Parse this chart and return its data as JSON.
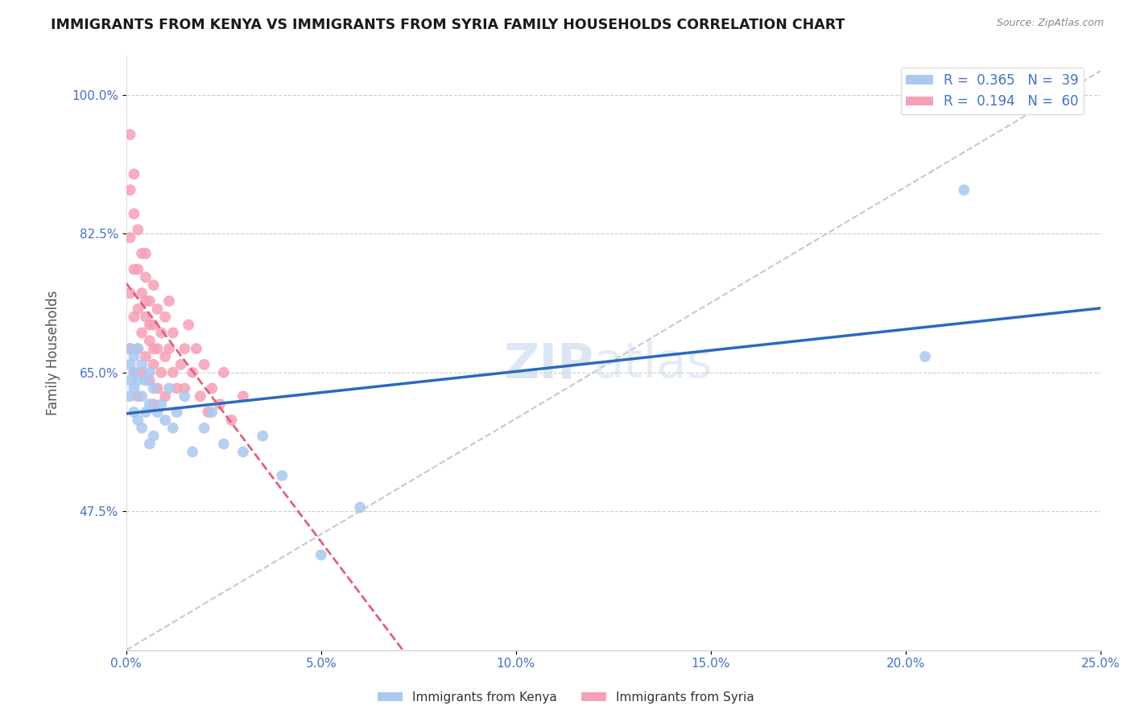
{
  "title": "IMMIGRANTS FROM KENYA VS IMMIGRANTS FROM SYRIA FAMILY HOUSEHOLDS CORRELATION CHART",
  "source": "Source: ZipAtlas.com",
  "xlabel": "",
  "ylabel": "Family Households",
  "xlim": [
    0.0,
    0.25
  ],
  "ylim": [
    0.3,
    1.05
  ],
  "xticks": [
    0.0,
    0.05,
    0.1,
    0.15,
    0.2,
    0.25
  ],
  "xtick_labels": [
    "0.0%",
    "5.0%",
    "10.0%",
    "15.0%",
    "20.0%",
    "25.0%"
  ],
  "yticks": [
    0.475,
    0.65,
    0.825,
    1.0
  ],
  "ytick_labels": [
    "47.5%",
    "65.0%",
    "82.5%",
    "100.0%"
  ],
  "kenya_R": 0.365,
  "kenya_N": 39,
  "syria_R": 0.194,
  "syria_N": 60,
  "kenya_color": "#aac8f0",
  "syria_color": "#f5a0b5",
  "kenya_line_color": "#2a6abf",
  "syria_line_color": "#e06080",
  "watermark_part1": "ZIP",
  "watermark_part2": "atlas",
  "legend_label_kenya": "Immigrants from Kenya",
  "legend_label_syria": "Immigrants from Syria",
  "kenya_x": [
    0.001,
    0.001,
    0.001,
    0.001,
    0.002,
    0.002,
    0.002,
    0.002,
    0.003,
    0.003,
    0.003,
    0.004,
    0.004,
    0.004,
    0.005,
    0.005,
    0.006,
    0.006,
    0.006,
    0.007,
    0.007,
    0.008,
    0.009,
    0.01,
    0.011,
    0.012,
    0.013,
    0.015,
    0.017,
    0.02,
    0.022,
    0.025,
    0.03,
    0.035,
    0.04,
    0.05,
    0.06,
    0.205,
    0.215
  ],
  "kenya_y": [
    0.64,
    0.66,
    0.68,
    0.62,
    0.6,
    0.63,
    0.67,
    0.65,
    0.59,
    0.64,
    0.68,
    0.58,
    0.62,
    0.66,
    0.6,
    0.64,
    0.56,
    0.61,
    0.65,
    0.57,
    0.63,
    0.6,
    0.61,
    0.59,
    0.63,
    0.58,
    0.6,
    0.62,
    0.55,
    0.58,
    0.6,
    0.56,
    0.55,
    0.57,
    0.52,
    0.42,
    0.48,
    0.67,
    0.88
  ],
  "syria_x": [
    0.001,
    0.001,
    0.001,
    0.001,
    0.001,
    0.002,
    0.002,
    0.002,
    0.002,
    0.002,
    0.003,
    0.003,
    0.003,
    0.003,
    0.003,
    0.004,
    0.004,
    0.004,
    0.004,
    0.005,
    0.005,
    0.005,
    0.005,
    0.005,
    0.006,
    0.006,
    0.006,
    0.006,
    0.007,
    0.007,
    0.007,
    0.007,
    0.007,
    0.008,
    0.008,
    0.008,
    0.009,
    0.009,
    0.01,
    0.01,
    0.01,
    0.011,
    0.011,
    0.012,
    0.012,
    0.013,
    0.014,
    0.015,
    0.015,
    0.016,
    0.017,
    0.018,
    0.019,
    0.02,
    0.021,
    0.022,
    0.024,
    0.025,
    0.027,
    0.03
  ],
  "syria_y": [
    0.95,
    0.88,
    0.82,
    0.75,
    0.68,
    0.9,
    0.85,
    0.78,
    0.72,
    0.65,
    0.83,
    0.78,
    0.73,
    0.68,
    0.62,
    0.8,
    0.75,
    0.7,
    0.65,
    0.77,
    0.72,
    0.67,
    0.74,
    0.8,
    0.74,
    0.69,
    0.64,
    0.71,
    0.71,
    0.66,
    0.61,
    0.76,
    0.68,
    0.73,
    0.68,
    0.63,
    0.7,
    0.65,
    0.67,
    0.72,
    0.62,
    0.68,
    0.74,
    0.65,
    0.7,
    0.63,
    0.66,
    0.68,
    0.63,
    0.71,
    0.65,
    0.68,
    0.62,
    0.66,
    0.6,
    0.63,
    0.61,
    0.65,
    0.59,
    0.62
  ],
  "ref_line_x": [
    0.0,
    0.25
  ],
  "ref_line_y": [
    0.3,
    1.03
  ],
  "background_color": "#ffffff",
  "grid_color": "#cccccc",
  "title_color": "#1a1a1a",
  "tick_label_color": "#4472c4"
}
